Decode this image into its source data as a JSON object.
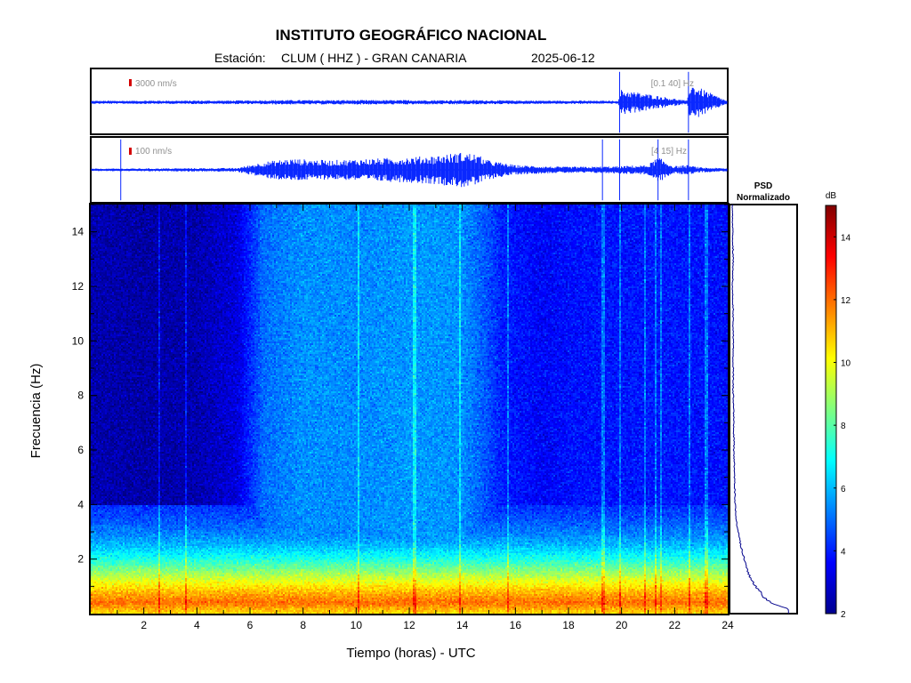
{
  "header": {
    "title": "INSTITUTO GEOGRÁFICO NACIONAL",
    "station_prefix": "Estación:",
    "station": "CLUM ( HHZ ) - GRAN CANARIA",
    "date": "2025-06-12"
  },
  "chart_data": [
    {
      "type": "line",
      "name": "seismogram-broadband",
      "scale_label": "3000 nm/s",
      "band_label": "[0.1 40] Hz",
      "x_range": [
        0,
        24
      ],
      "color": "#0a28ff",
      "scale_color": "#d40000",
      "spikes_hours": [
        19.95,
        22.55
      ],
      "envelope": {
        "hours": [
          0,
          6,
          6.5,
          14.5,
          15.5,
          19.9,
          20.0,
          22.5,
          22.6,
          24
        ],
        "amplitude": [
          0.05,
          0.06,
          0.07,
          0.07,
          0.06,
          0.05,
          0.4,
          0.05,
          0.6,
          0.05
        ]
      }
    },
    {
      "type": "line",
      "name": "seismogram-filtered",
      "scale_label": "100 nm/s",
      "band_label": "[4 15] Hz",
      "x_range": [
        0,
        24
      ],
      "color": "#0a28ff",
      "scale_color": "#d40000",
      "spikes_hours": [
        1.1,
        19.3,
        19.95,
        21.4,
        22.55
      ],
      "envelope": {
        "hours": [
          0,
          5.5,
          6.5,
          7.5,
          9,
          10.5,
          12,
          13,
          14,
          14.5,
          15,
          16,
          17.5,
          19,
          20,
          21,
          21.4,
          22,
          22.5,
          23,
          24
        ],
        "amplitude": [
          0.04,
          0.06,
          0.25,
          0.35,
          0.3,
          0.35,
          0.4,
          0.45,
          0.55,
          0.5,
          0.3,
          0.15,
          0.1,
          0.1,
          0.12,
          0.15,
          0.4,
          0.12,
          0.15,
          0.08,
          0.05
        ]
      }
    },
    {
      "type": "heatmap",
      "name": "spectrogram",
      "xlabel": "Tiempo (horas) - UTC",
      "ylabel": "Frecuencia  (Hz)",
      "xlim": [
        0,
        24
      ],
      "ylim": [
        0,
        15
      ],
      "xticks": [
        2,
        4,
        6,
        8,
        10,
        12,
        14,
        16,
        18,
        20,
        22,
        24
      ],
      "yticks": [
        2,
        4,
        6,
        8,
        10,
        12,
        14
      ],
      "noise_profile": {
        "hours": [
          0,
          2,
          4,
          5.5,
          6.5,
          8,
          10,
          12,
          14,
          14.8,
          15.5,
          17,
          18,
          20,
          22,
          24
        ],
        "level": [
          2.6,
          2.5,
          2.6,
          3.2,
          5.0,
          5.5,
          5.4,
          5.6,
          5.5,
          4.8,
          4.0,
          3.6,
          3.8,
          3.9,
          3.9,
          3.8
        ]
      },
      "low_band_db": {
        "freqs": [
          0,
          0.4,
          0.8,
          1.2,
          1.6,
          2.0,
          2.5,
          3.0,
          3.5,
          4.0
        ],
        "db": [
          10.5,
          12.0,
          11.0,
          9.8,
          8.5,
          7.2,
          6.0,
          5.2,
          4.6,
          4.2
        ]
      },
      "vertical_lines_hours": [
        2.6,
        3.6,
        10.1,
        12.2,
        13.9,
        15.7,
        19.3,
        19.95,
        20.9,
        21.3,
        21.5,
        22.55,
        23.2
      ]
    },
    {
      "type": "line",
      "name": "psd-normalizado",
      "title": "PSD\nNormalizado",
      "freqs": [
        0,
        0.2,
        0.4,
        0.6,
        0.8,
        1.0,
        1.3,
        1.6,
        2.0,
        2.4,
        2.8,
        3.2,
        3.6,
        4.0,
        5,
        6,
        7,
        8,
        9,
        10,
        11,
        12,
        13,
        14,
        15
      ],
      "values": [
        0.9,
        0.85,
        0.62,
        0.5,
        0.45,
        0.38,
        0.3,
        0.25,
        0.2,
        0.16,
        0.12,
        0.09,
        0.07,
        0.06,
        0.05,
        0.04,
        0.04,
        0.03,
        0.03,
        0.03,
        0.03,
        0.02,
        0.03,
        0.02,
        0.02
      ],
      "color": "#00008b"
    },
    {
      "type": "heatmap",
      "name": "colorbar",
      "unit": "dB",
      "clim": [
        2,
        15
      ],
      "ticks": [
        2,
        4,
        6,
        8,
        10,
        12,
        14
      ],
      "colormap": "jet"
    }
  ]
}
